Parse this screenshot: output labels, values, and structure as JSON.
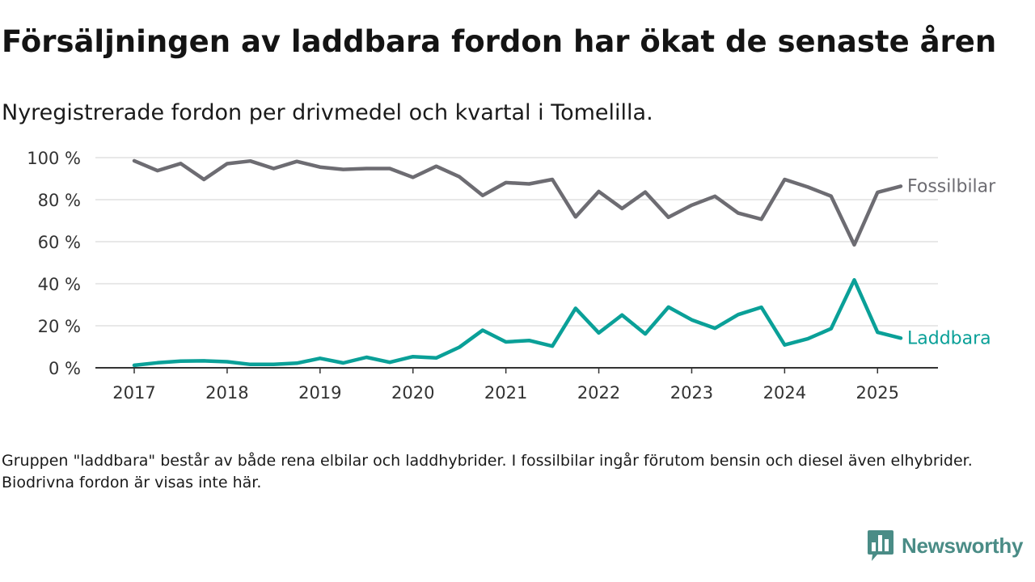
{
  "title": "Försäljningen av laddbara fordon har ökat de senaste åren",
  "subtitle": "Nyregistrerade fordon per drivmedel och kvartal i Tomelilla.",
  "footnote": "Gruppen \"laddbara\" består av både rena elbilar och laddhybrider. I fossilbilar ingår förutom bensin och diesel även elhybrider. Biodrivna fordon är visas inte här.",
  "brand": {
    "name": "Newsworthy",
    "logo_icon": "bar-chart-speech-bubble-icon",
    "color": "#4a8c86"
  },
  "chart_data": {
    "type": "line",
    "x_unit": "quarter",
    "x": [
      "2017-Q1",
      "2017-Q2",
      "2017-Q3",
      "2017-Q4",
      "2018-Q1",
      "2018-Q2",
      "2018-Q3",
      "2018-Q4",
      "2019-Q1",
      "2019-Q2",
      "2019-Q3",
      "2019-Q4",
      "2020-Q1",
      "2020-Q2",
      "2020-Q3",
      "2020-Q4",
      "2021-Q1",
      "2021-Q2",
      "2021-Q3",
      "2021-Q4",
      "2022-Q1",
      "2022-Q2",
      "2022-Q3",
      "2022-Q4",
      "2023-Q1",
      "2023-Q2",
      "2023-Q3",
      "2023-Q4",
      "2024-Q1",
      "2024-Q2",
      "2024-Q3",
      "2024-Q4",
      "2025-Q1",
      "2025-Q2"
    ],
    "x_ticks": [
      "2017",
      "2018",
      "2019",
      "2020",
      "2021",
      "2022",
      "2023",
      "2024",
      "2025"
    ],
    "y_ticks": [
      "0 %",
      "20 %",
      "40 %",
      "60 %",
      "80 %",
      "100 %"
    ],
    "y_tick_values": [
      0,
      20,
      40,
      60,
      80,
      100
    ],
    "ylim": [
      0,
      100
    ],
    "grid": "horizontal",
    "legend": "end-of-line labels",
    "series": [
      {
        "name": "Fossilbilar",
        "color": "#6d6c72",
        "values": [
          98.5,
          93.8,
          97.2,
          89.6,
          97.1,
          98.4,
          94.8,
          98.2,
          95.5,
          94.4,
          94.8,
          94.8,
          90.6,
          95.9,
          90.9,
          82.0,
          88.1,
          87.5,
          89.6,
          71.8,
          83.9,
          75.8,
          83.6,
          71.6,
          77.4,
          81.6,
          73.6,
          70.7,
          89.6,
          86.0,
          81.7,
          58.5,
          83.5,
          86.4
        ]
      },
      {
        "name": "Laddbara",
        "color": "#0aa098",
        "values": [
          1.2,
          2.4,
          3.2,
          3.3,
          2.9,
          1.6,
          1.6,
          2.2,
          4.5,
          2.3,
          5.0,
          2.6,
          5.3,
          4.7,
          9.8,
          17.9,
          12.3,
          13.0,
          10.3,
          28.3,
          16.6,
          25.1,
          16.1,
          28.9,
          22.8,
          18.8,
          25.3,
          28.8,
          10.9,
          13.8,
          18.6,
          41.8,
          16.9,
          14.1
        ]
      }
    ]
  }
}
